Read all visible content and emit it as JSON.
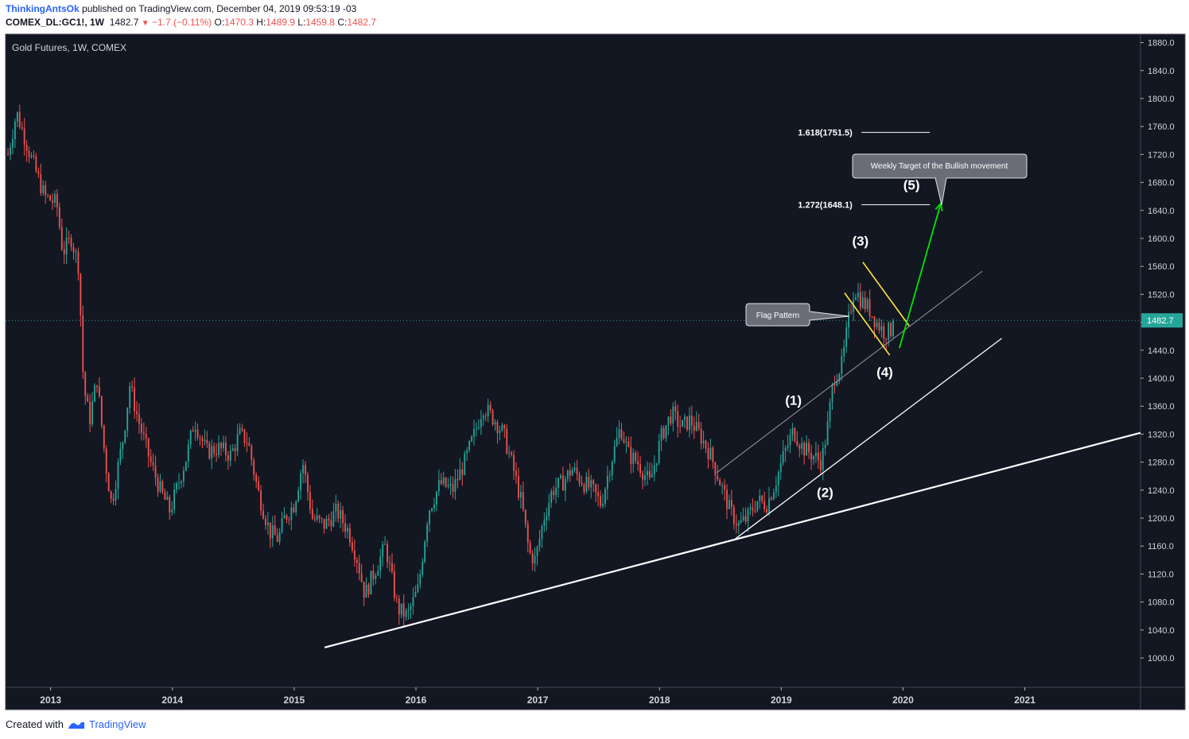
{
  "header": {
    "author": "ThinkingAntsOk",
    "published_text": "published on TradingView.com, December 04, 2019 09:53:19 -03",
    "symbol": "COMEX_DL:GC1!, 1W",
    "last": "1482.7",
    "change": "−1.7 (−0.11%)",
    "open_label": "O:",
    "open": "1470.3",
    "high_label": "H:",
    "high": "1489.9",
    "low_label": "L:",
    "low": "1459.8",
    "close_label": "C:",
    "close": "1482.7"
  },
  "footer": {
    "created_with": "Created with",
    "brand": "TradingView"
  },
  "colors": {
    "background": "#131722",
    "up": "#26a69a",
    "down": "#ef5350",
    "trendline": "#ffffff",
    "flag": "#ffeb3b",
    "arrow": "#00e600",
    "price_line": "#26a69a"
  },
  "chart_data": {
    "type": "candlestick",
    "title": "Gold Futures, 1W, COMEX",
    "x_tick_labels": [
      "2013",
      "2014",
      "2015",
      "2016",
      "2017",
      "2018",
      "2019",
      "2020",
      "2021"
    ],
    "y_tick_labels": [
      "1000.0",
      "1040.0",
      "1080.0",
      "1120.0",
      "1160.0",
      "1200.0",
      "1240.0",
      "1280.0",
      "1320.0",
      "1360.0",
      "1400.0",
      "1440.0",
      "1480.0",
      "1520.0",
      "1560.0",
      "1600.0",
      "1640.0",
      "1680.0",
      "1720.0",
      "1760.0",
      "1800.0",
      "1840.0",
      "1880.0"
    ],
    "ylim": [
      958,
      1892
    ],
    "xlim": [
      2012.63,
      2021.95
    ],
    "current_price": 1482.7,
    "current_price_label": "1482.7",
    "anchors": [
      [
        2012.65,
        1720
      ],
      [
        2012.72,
        1780
      ],
      [
        2012.85,
        1710
      ],
      [
        2012.95,
        1660
      ],
      [
        2013.05,
        1650
      ],
      [
        2013.1,
        1580
      ],
      [
        2013.17,
        1600
      ],
      [
        2013.23,
        1560
      ],
      [
        2013.27,
        1390
      ],
      [
        2013.32,
        1340
      ],
      [
        2013.38,
        1400
      ],
      [
        2013.45,
        1280
      ],
      [
        2013.5,
        1220
      ],
      [
        2013.6,
        1320
      ],
      [
        2013.65,
        1390
      ],
      [
        2013.72,
        1340
      ],
      [
        2013.82,
        1280
      ],
      [
        2013.9,
        1240
      ],
      [
        2013.98,
        1210
      ],
      [
        2014.05,
        1250
      ],
      [
        2014.12,
        1290
      ],
      [
        2014.18,
        1340
      ],
      [
        2014.28,
        1295
      ],
      [
        2014.38,
        1300
      ],
      [
        2014.48,
        1290
      ],
      [
        2014.55,
        1320
      ],
      [
        2014.62,
        1310
      ],
      [
        2014.7,
        1240
      ],
      [
        2014.8,
        1180
      ],
      [
        2014.87,
        1170
      ],
      [
        2014.92,
        1200
      ],
      [
        2015.0,
        1220
      ],
      [
        2015.07,
        1280
      ],
      [
        2015.15,
        1200
      ],
      [
        2015.25,
        1190
      ],
      [
        2015.35,
        1210
      ],
      [
        2015.45,
        1180
      ],
      [
        2015.52,
        1140
      ],
      [
        2015.58,
        1090
      ],
      [
        2015.65,
        1120
      ],
      [
        2015.75,
        1160
      ],
      [
        2015.85,
        1070
      ],
      [
        2015.93,
        1060
      ],
      [
        2016.02,
        1100
      ],
      [
        2016.1,
        1210
      ],
      [
        2016.2,
        1250
      ],
      [
        2016.3,
        1240
      ],
      [
        2016.4,
        1280
      ],
      [
        2016.48,
        1320
      ],
      [
        2016.55,
        1360
      ],
      [
        2016.65,
        1340
      ],
      [
        2016.72,
        1320
      ],
      [
        2016.8,
        1270
      ],
      [
        2016.87,
        1220
      ],
      [
        2016.93,
        1150
      ],
      [
        2016.98,
        1140
      ],
      [
        2017.05,
        1200
      ],
      [
        2017.12,
        1240
      ],
      [
        2017.2,
        1250
      ],
      [
        2017.28,
        1270
      ],
      [
        2017.38,
        1250
      ],
      [
        2017.45,
        1240
      ],
      [
        2017.52,
        1220
      ],
      [
        2017.6,
        1280
      ],
      [
        2017.68,
        1330
      ],
      [
        2017.75,
        1290
      ],
      [
        2017.82,
        1280
      ],
      [
        2017.92,
        1250
      ],
      [
        2018.02,
        1320
      ],
      [
        2018.1,
        1350
      ],
      [
        2018.18,
        1330
      ],
      [
        2018.25,
        1340
      ],
      [
        2018.33,
        1320
      ],
      [
        2018.42,
        1290
      ],
      [
        2018.5,
        1250
      ],
      [
        2018.58,
        1210
      ],
      [
        2018.65,
        1190
      ],
      [
        2018.72,
        1200
      ],
      [
        2018.8,
        1225
      ],
      [
        2018.88,
        1220
      ],
      [
        2018.95,
        1250
      ],
      [
        2019.02,
        1290
      ],
      [
        2019.1,
        1325
      ],
      [
        2019.18,
        1300
      ],
      [
        2019.26,
        1290
      ],
      [
        2019.33,
        1280
      ],
      [
        2019.38,
        1330
      ],
      [
        2019.43,
        1400
      ],
      [
        2019.5,
        1420
      ],
      [
        2019.55,
        1480
      ],
      [
        2019.6,
        1530
      ],
      [
        2019.66,
        1510
      ],
      [
        2019.72,
        1500
      ],
      [
        2019.78,
        1480
      ],
      [
        2019.85,
        1465
      ],
      [
        2019.92,
        1470
      ]
    ],
    "annotations": {
      "wave_labels": [
        {
          "text": "(1)",
          "x": 2019.1,
          "y": 1362
        },
        {
          "text": "(2)",
          "x": 2019.36,
          "y": 1230
        },
        {
          "text": "(3)",
          "x": 2019.65,
          "y": 1590
        },
        {
          "text": "(4)",
          "x": 2019.85,
          "y": 1402
        },
        {
          "text": "(5)",
          "x": 2020.07,
          "y": 1670
        }
      ],
      "fib_levels": [
        {
          "label": "1.618(1751.5)",
          "value": 1751.5,
          "x_start": 2019.15,
          "x_end": 2020.22
        },
        {
          "label": "1.272(1648.1)",
          "value": 1648.1,
          "x_start": 2019.15,
          "x_end": 2020.22
        }
      ],
      "callouts": [
        {
          "text": "Flag Pattern"
        },
        {
          "text": "Weekly Target of the Bullish movement"
        }
      ],
      "trendlines": [
        {
          "x1": 2015.25,
          "y1": 1015,
          "x2": 2021.95,
          "y2": 1322
        },
        {
          "x1": 2018.62,
          "y1": 1170,
          "x2": 2020.81,
          "y2": 1457
        },
        {
          "x1": 2018.47,
          "y1": 1265,
          "x2": 2020.65,
          "y2": 1553
        }
      ],
      "flag_lines": [
        {
          "x1": 2019.67,
          "y1": 1566,
          "x2": 2020.05,
          "y2": 1475
        },
        {
          "x1": 2019.52,
          "y1": 1522,
          "x2": 2019.89,
          "y2": 1433
        }
      ],
      "target_arrow": {
        "x1": 2019.97,
        "y1": 1443,
        "x2": 2020.31,
        "y2": 1650
      }
    }
  }
}
